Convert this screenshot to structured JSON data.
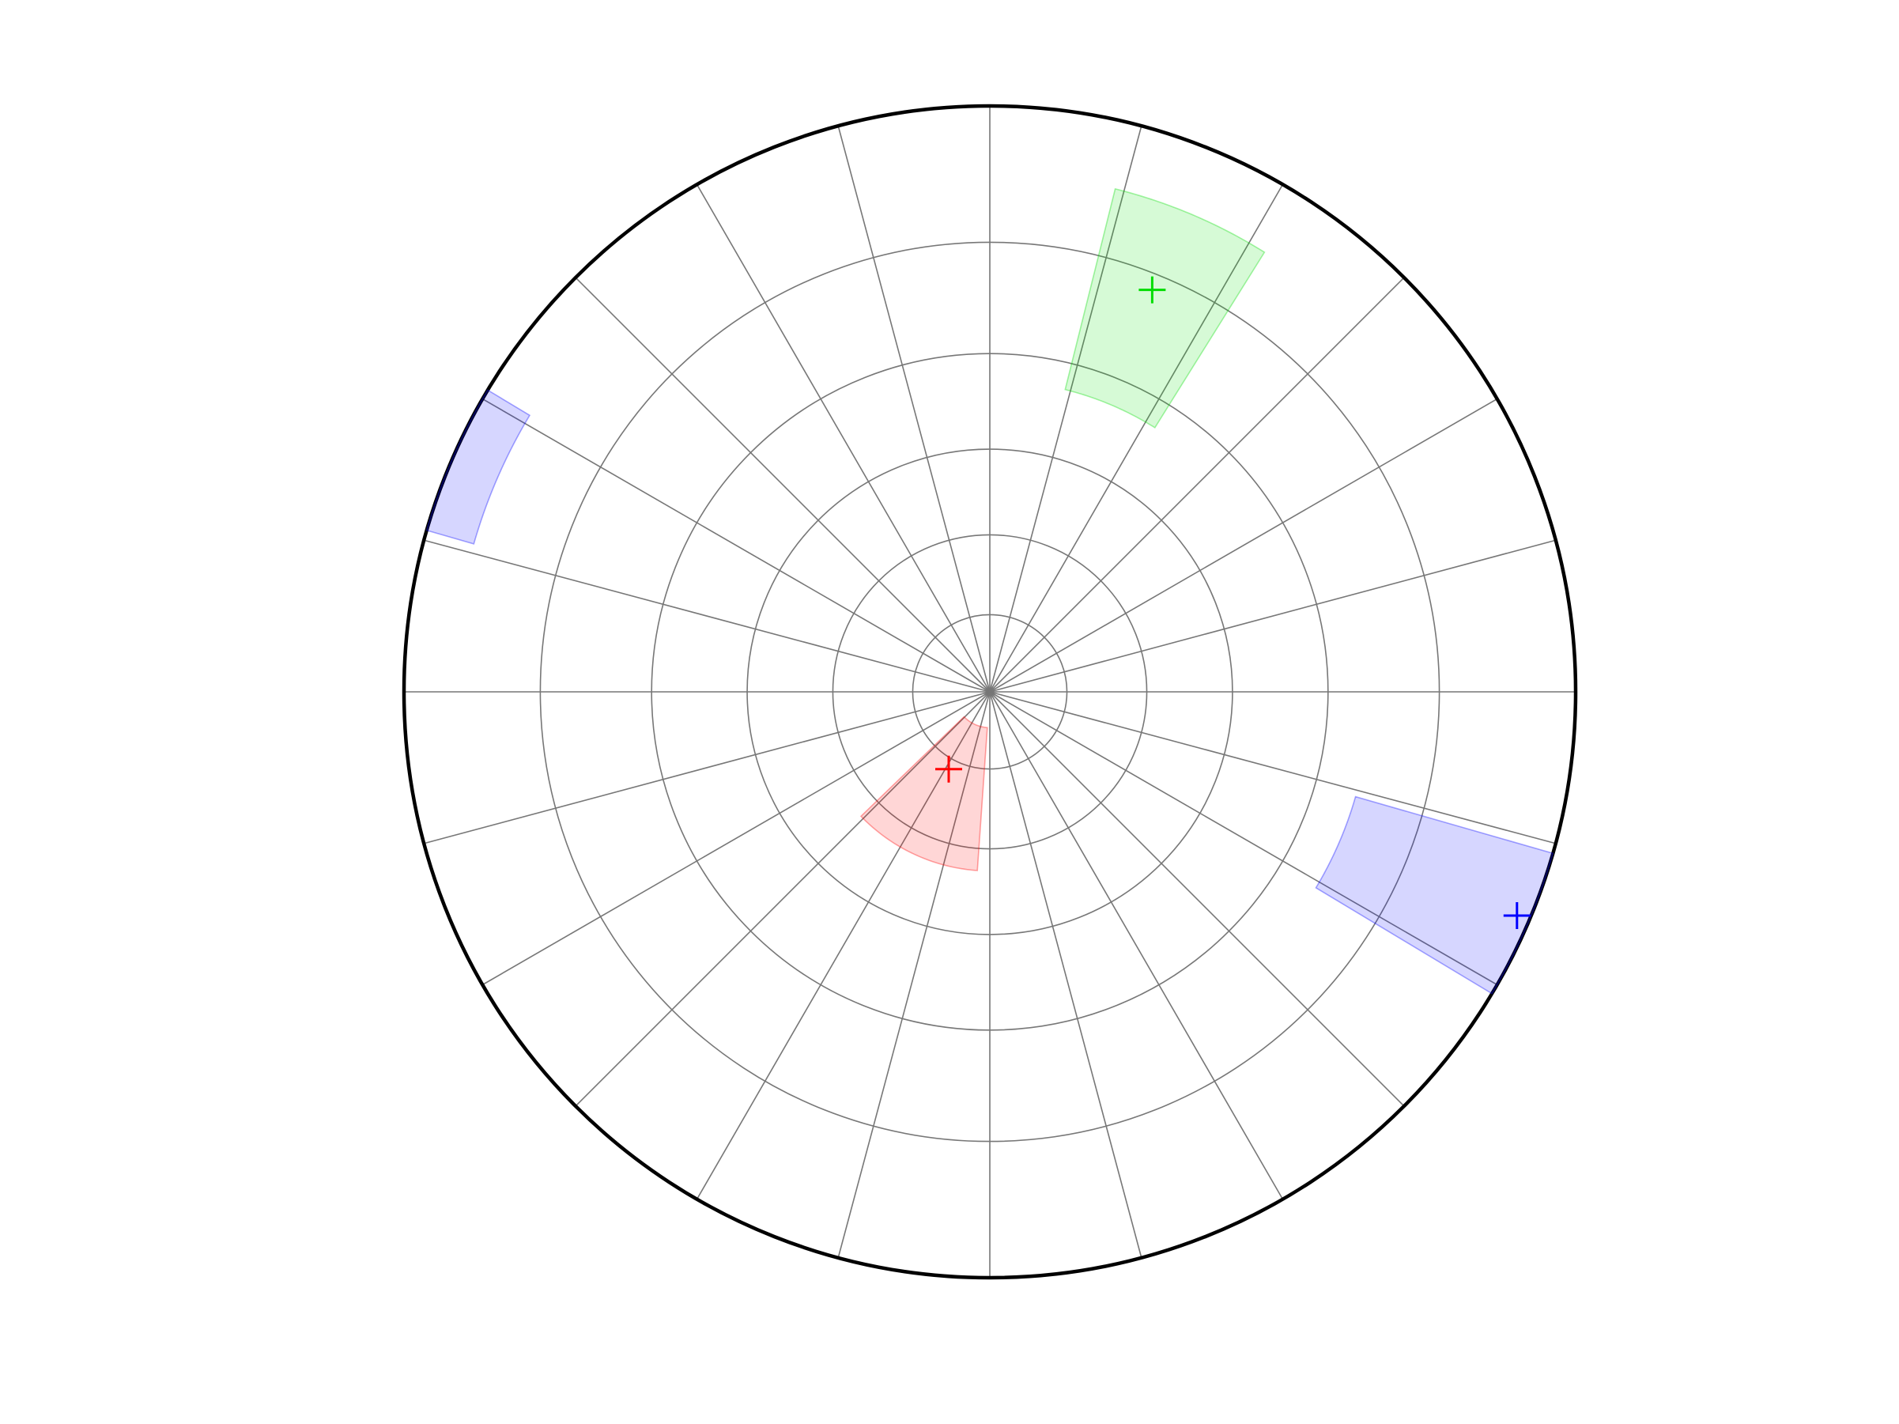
{
  "chart_data": {
    "type": "stereonet",
    "projection": "stereographic",
    "plunge_ticks": [
      0,
      15,
      30,
      45,
      60,
      75
    ],
    "azimuth_ticks": [
      0,
      15,
      30,
      45,
      60,
      75,
      90,
      105,
      120,
      135,
      150,
      165,
      180,
      195,
      210,
      225,
      240,
      255,
      270,
      285,
      300,
      315,
      330,
      345
    ],
    "grid": true,
    "series": [
      {
        "color": "#00dd00",
        "trend": 22,
        "plunge": 17,
        "trend_range": [
          14,
          32
        ],
        "plunge_range": [
          7,
          34
        ]
      },
      {
        "color": "#ff0000",
        "trend": 208,
        "plunge": 73,
        "trend_range": [
          184,
          226
        ],
        "plunge_range": [
          56,
          83
        ]
      },
      {
        "color": "#0000ff",
        "trend": 113,
        "plunge": 1.3,
        "trend_range": [
          106,
          121
        ],
        "plunge_range": [
          -5,
          24
        ]
      }
    ]
  }
}
